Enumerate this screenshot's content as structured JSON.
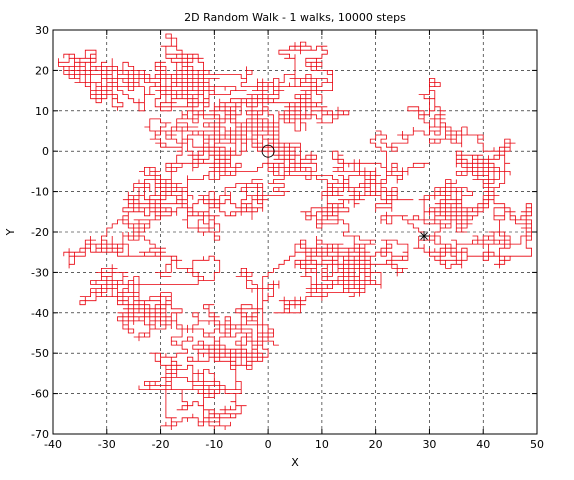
{
  "chart_data": {
    "type": "line",
    "title": "2D Random Walk - 1 walks, 10000 steps",
    "xlabel": "X",
    "ylabel": "Y",
    "xlim": [
      -40,
      50
    ],
    "ylim": [
      -70,
      30
    ],
    "xticks": [
      -40,
      -30,
      -20,
      -10,
      0,
      10,
      20,
      30,
      40,
      50
    ],
    "yticks": [
      -70,
      -60,
      -50,
      -40,
      -30,
      -20,
      -10,
      0,
      10,
      20,
      30
    ],
    "grid": true,
    "grid_style": "dashed",
    "line_color": "#e8000b",
    "start_marker": {
      "x": 0,
      "y": 0,
      "symbol": "circle"
    },
    "end_marker": {
      "x": 29,
      "y": -21,
      "symbol": "star"
    },
    "n_steps": 10000,
    "random_seed": 7,
    "walk_anchors": [
      [
        0,
        0
      ],
      [
        -5,
        5
      ],
      [
        -10,
        10
      ],
      [
        -14,
        22
      ],
      [
        -20,
        12
      ],
      [
        -25,
        18
      ],
      [
        -34,
        20
      ],
      [
        -25,
        12
      ],
      [
        -15,
        15
      ],
      [
        -5,
        18
      ],
      [
        5,
        16
      ],
      [
        10,
        17
      ],
      [
        0,
        10
      ],
      [
        -10,
        4
      ],
      [
        -15,
        8
      ],
      [
        -10,
        0
      ],
      [
        0,
        -2
      ],
      [
        3,
        -6
      ],
      [
        -5,
        -10
      ],
      [
        -15,
        -15
      ],
      [
        -25,
        -15
      ],
      [
        -30,
        -20
      ],
      [
        -20,
        -25
      ],
      [
        -28,
        -32
      ],
      [
        -34,
        -36
      ],
      [
        -25,
        -40
      ],
      [
        -15,
        -45
      ],
      [
        -18,
        -55
      ],
      [
        -10,
        -60
      ],
      [
        -8,
        -50
      ],
      [
        -12,
        -38
      ],
      [
        -5,
        -30
      ],
      [
        5,
        -25
      ],
      [
        8,
        -35
      ],
      [
        15,
        -30
      ],
      [
        20,
        -33
      ],
      [
        18,
        -25
      ],
      [
        10,
        -18
      ],
      [
        15,
        -10
      ],
      [
        22,
        -5
      ],
      [
        20,
        2
      ],
      [
        30,
        5
      ],
      [
        35,
        -2
      ],
      [
        42,
        -10
      ],
      [
        45,
        -15
      ],
      [
        38,
        -22
      ],
      [
        32,
        -15
      ],
      [
        35,
        -20
      ],
      [
        29,
        -21
      ]
    ]
  }
}
